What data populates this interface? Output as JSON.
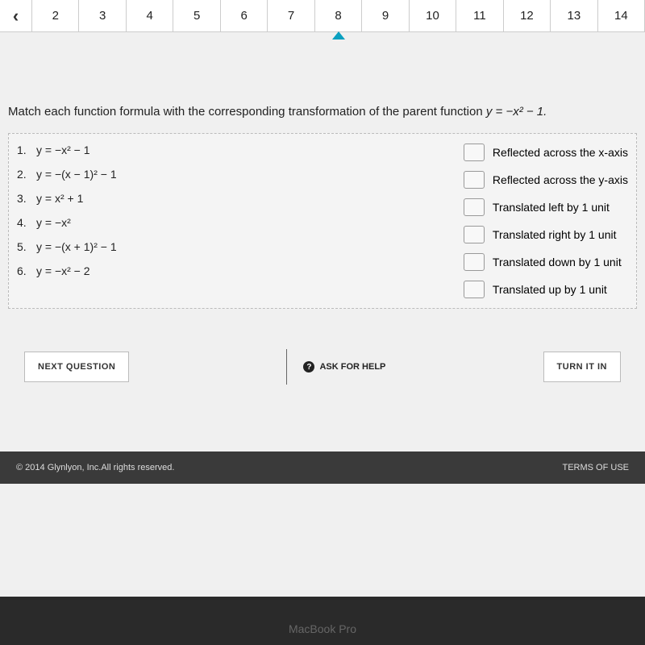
{
  "nav": {
    "items": [
      "2",
      "3",
      "4",
      "5",
      "6",
      "7",
      "8",
      "9",
      "10",
      "11",
      "12",
      "13",
      "14"
    ],
    "active_index": 6
  },
  "prompt": {
    "text_before": "Match each function formula with the corresponding transformation of the parent function ",
    "parent_fn": "y = −x² − 1.",
    "text_after": ""
  },
  "formulas": [
    {
      "num": "1.",
      "text": "y = −x² − 1"
    },
    {
      "num": "2.",
      "text": "y = −(x − 1)² − 1"
    },
    {
      "num": "3.",
      "text": "y = x² + 1"
    },
    {
      "num": "4.",
      "text": "y = −x²"
    },
    {
      "num": "5.",
      "text": "y = −(x + 1)² − 1"
    },
    {
      "num": "6.",
      "text": "y = −x² − 2"
    }
  ],
  "answers": [
    "Reflected across the x-axis",
    "Reflected across the y-axis",
    "Translated left by 1 unit",
    "Translated right by 1 unit",
    "Translated down by 1 unit",
    "Translated up by 1 unit"
  ],
  "buttons": {
    "next": "NEXT QUESTION",
    "ask": "ASK FOR HELP",
    "turnin": "TURN IT IN"
  },
  "footer": {
    "copyright": "© 2014 Glynlyon, Inc.All rights reserved.",
    "terms": "TERMS OF USE"
  },
  "device": "MacBook Pro"
}
